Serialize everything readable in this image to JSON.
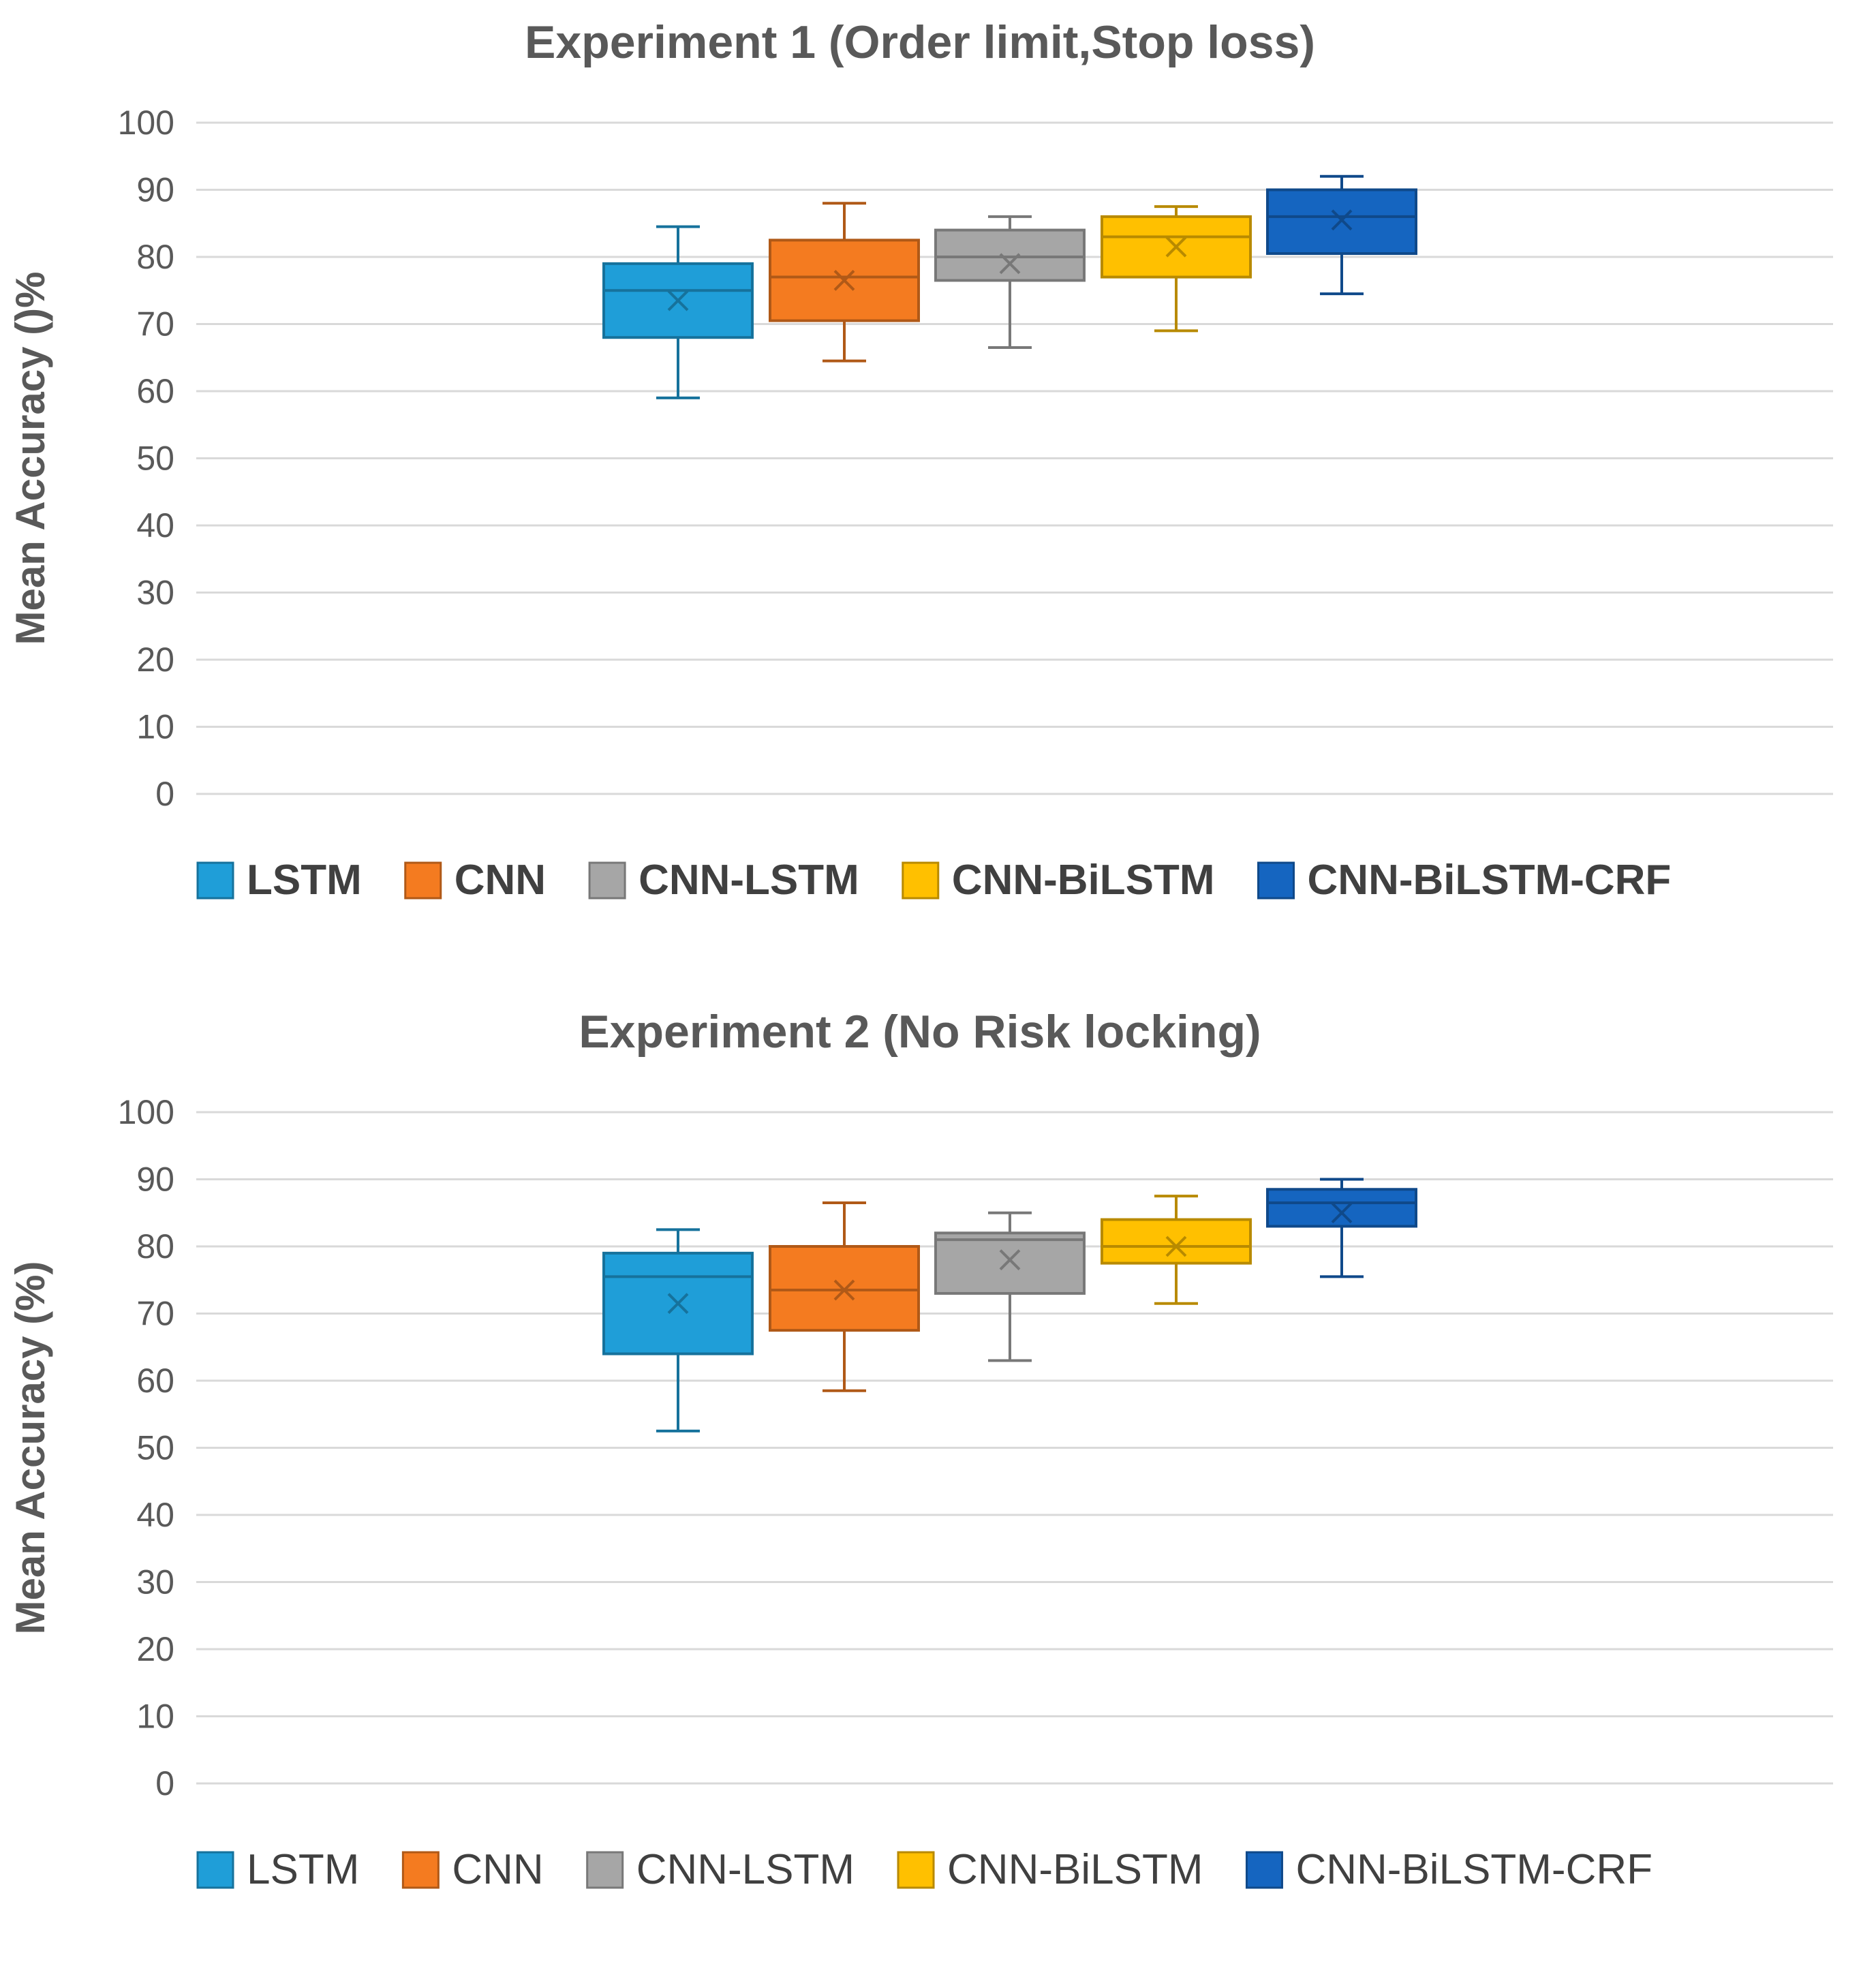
{
  "chart_data": [
    {
      "type": "box",
      "title": "Experiment 1 (Order limit,Stop loss)",
      "ylabel": "Mean Accuracy ()%",
      "xlabel": "",
      "ylim": [
        0,
        100
      ],
      "yticks": [
        0,
        10,
        20,
        30,
        40,
        50,
        60,
        70,
        80,
        90,
        100
      ],
      "grid": true,
      "legend_position": "bottom",
      "legend_bold": true,
      "series": [
        {
          "name": "LSTM",
          "color": "#1F9ED8",
          "min": 59,
          "q1": 68,
          "median": 75,
          "q3": 79,
          "max": 84.5,
          "mean": 73.5
        },
        {
          "name": "CNN",
          "color": "#F47B20",
          "min": 64.5,
          "q1": 70.5,
          "median": 77,
          "q3": 82.5,
          "max": 88,
          "mean": 76.5
        },
        {
          "name": "CNN-LSTM",
          "color": "#A6A6A6",
          "min": 66.5,
          "q1": 76.5,
          "median": 80,
          "q3": 84,
          "max": 86,
          "mean": 79
        },
        {
          "name": "CNN-BiLSTM",
          "color": "#FFC000",
          "min": 69,
          "q1": 77,
          "median": 83,
          "q3": 86,
          "max": 87.5,
          "mean": 81.5
        },
        {
          "name": "CNN-BiLSTM-CRF",
          "color": "#1565C0",
          "min": 74.5,
          "q1": 80.5,
          "median": 86,
          "q3": 90,
          "max": 92,
          "mean": 85.5
        }
      ]
    },
    {
      "type": "box",
      "title": "Experiment 2 (No Risk locking)",
      "ylabel": "Mean Accuracy (%)",
      "xlabel": "",
      "ylim": [
        0,
        100
      ],
      "yticks": [
        0,
        10,
        20,
        30,
        40,
        50,
        60,
        70,
        80,
        90,
        100
      ],
      "grid": true,
      "legend_position": "bottom",
      "legend_bold": false,
      "series": [
        {
          "name": "LSTM",
          "color": "#1F9ED8",
          "min": 52.5,
          "q1": 64,
          "median": 75.5,
          "q3": 79,
          "max": 82.5,
          "mean": 71.5
        },
        {
          "name": "CNN",
          "color": "#F47B20",
          "min": 58.5,
          "q1": 67.5,
          "median": 73.5,
          "q3": 80,
          "max": 86.5,
          "mean": 73.5
        },
        {
          "name": "CNN-LSTM",
          "color": "#A6A6A6",
          "min": 63,
          "q1": 73,
          "median": 81,
          "q3": 82,
          "max": 85,
          "mean": 78
        },
        {
          "name": "CNN-BiLSTM",
          "color": "#FFC000",
          "min": 71.5,
          "q1": 77.5,
          "median": 80,
          "q3": 84,
          "max": 87.5,
          "mean": 80
        },
        {
          "name": "CNN-BiLSTM-CRF",
          "color": "#1565C0",
          "min": 75.5,
          "q1": 83,
          "median": 86.5,
          "q3": 88.5,
          "max": 90,
          "mean": 85
        }
      ]
    }
  ]
}
